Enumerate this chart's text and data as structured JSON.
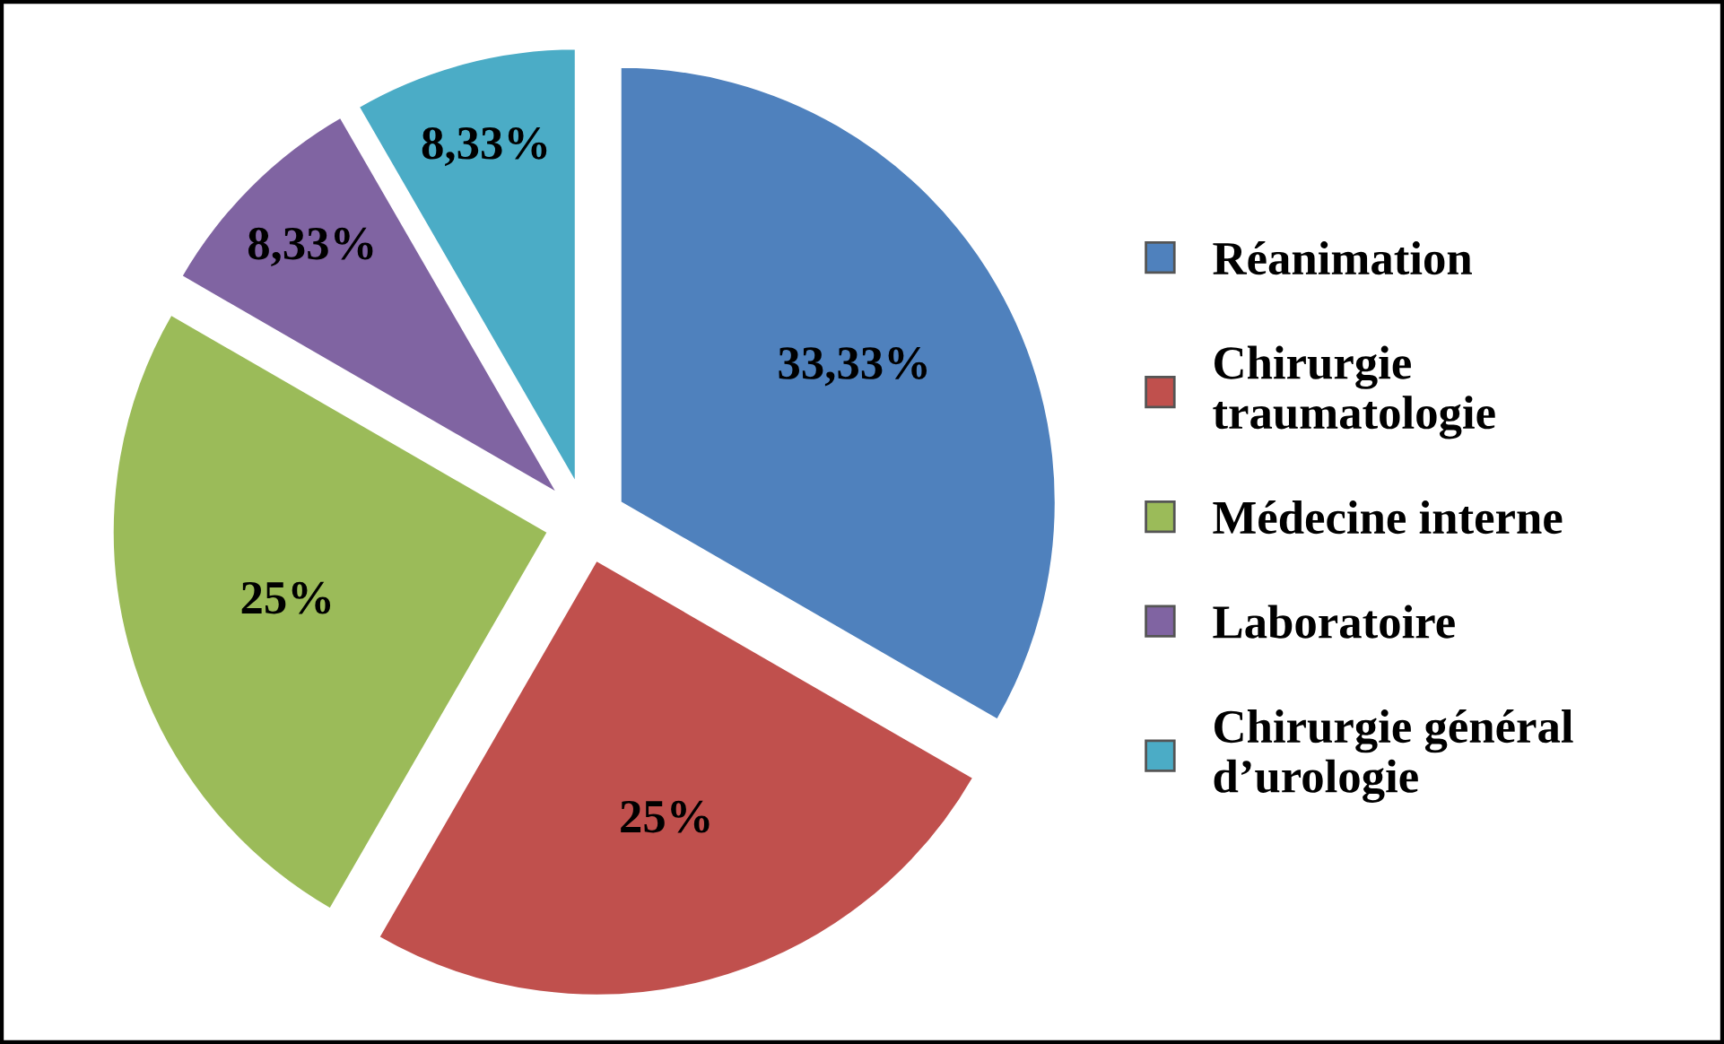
{
  "chart_data": {
    "type": "pie",
    "categories": [
      "Réanimation",
      "Chirurgie\ntraumatologie",
      "Médecine interne",
      "Laboratoire",
      "Chirurgie général\nd’urologie"
    ],
    "values": [
      33.33,
      25,
      25,
      8.33,
      8.33
    ],
    "value_labels": [
      "33,33%",
      "25%",
      "25%",
      "8,33%",
      "8,33%"
    ],
    "colors": [
      "#4f81bd",
      "#c0504d",
      "#9bbb59",
      "#8064a2",
      "#4bacc6"
    ],
    "legend": "right"
  }
}
